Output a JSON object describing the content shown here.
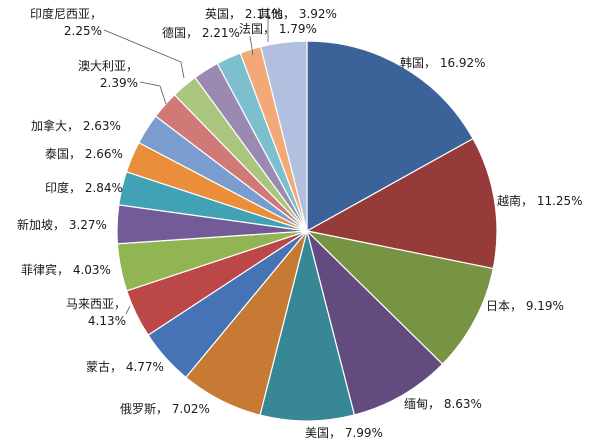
{
  "chart_data": {
    "type": "pie",
    "title": "",
    "slices": [
      {
        "label": "韩国",
        "value": 16.92,
        "text": "16.92%",
        "color": "#3C6399"
      },
      {
        "label": "越南",
        "value": 11.25,
        "text": "11.25%",
        "color": "#963B3A"
      },
      {
        "label": "日本",
        "value": 9.19,
        "text": "9.19%",
        "color": "#779442"
      },
      {
        "label": "缅甸",
        "value": 8.63,
        "text": "8.63%",
        "color": "#634B7F"
      },
      {
        "label": "美国",
        "value": 7.99,
        "text": "7.99%",
        "color": "#378797"
      },
      {
        "label": "俄罗斯",
        "value": 7.02,
        "text": "7.02%",
        "color": "#C77A33"
      },
      {
        "label": "蒙古",
        "value": 4.77,
        "text": "4.77%",
        "color": "#4673B5"
      },
      {
        "label": "马来西亚",
        "value": 4.13,
        "text": "4.13%",
        "color": "#BB4846"
      },
      {
        "label": "菲律宾",
        "value": 4.03,
        "text": "4.03%",
        "color": "#92B554"
      },
      {
        "label": "新加坡",
        "value": 3.27,
        "text": "3.27%",
        "color": "#735A98"
      },
      {
        "label": "印度",
        "value": 2.84,
        "text": "2.84%",
        "color": "#41A1B5"
      },
      {
        "label": "泰国",
        "value": 2.66,
        "text": "2.66%",
        "color": "#EB8E3C"
      },
      {
        "label": "加拿大",
        "value": 2.63,
        "text": "2.63%",
        "color": "#7B9CCF"
      },
      {
        "label": "澳大利亚",
        "value": 2.39,
        "text": "2.39%",
        "color": "#D07A78"
      },
      {
        "label": "印度尼西亚",
        "value": 2.25,
        "text": "2.25%",
        "color": "#AAC57E"
      },
      {
        "label": "德国",
        "value": 2.21,
        "text": "2.21%",
        "color": "#9A89B1"
      },
      {
        "label": "英国",
        "value": 2.11,
        "text": "2.11%",
        "color": "#7CBFCE"
      },
      {
        "label": "法国",
        "value": 1.79,
        "text": "1.79%",
        "color": "#F3A977"
      },
      {
        "label": "其他",
        "value": 3.92,
        "text": "3.92%",
        "color": "#B0C0DE"
      }
    ]
  }
}
